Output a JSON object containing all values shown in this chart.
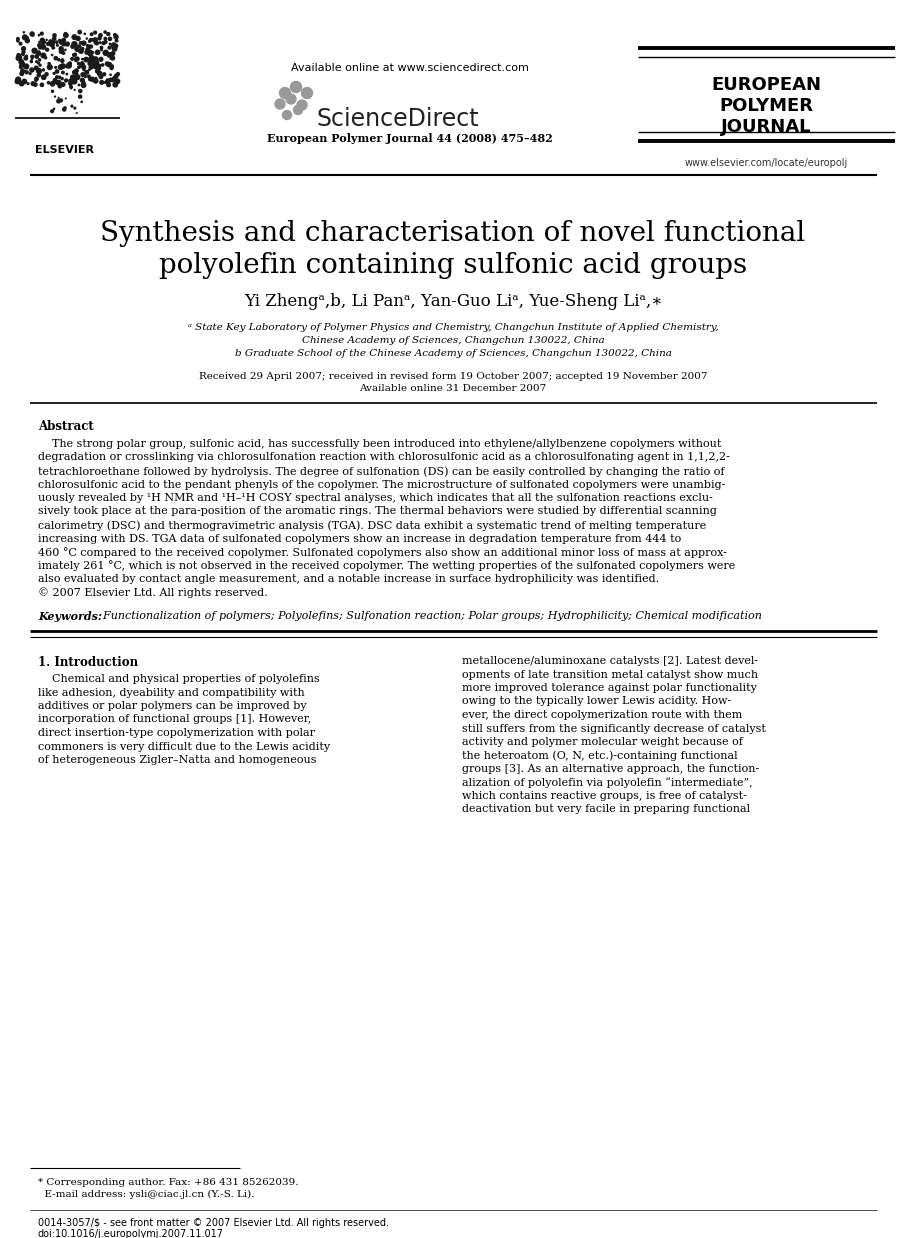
{
  "bg_color": "#ffffff",
  "header": {
    "elsevier_text": "ELSEVIER",
    "available_online": "Available online at www.sciencedirect.com",
    "sciencedirect": "ScienceDirect",
    "journal_line": "European Polymer Journal 44 (2008) 475–482",
    "epj_line1": "EUROPEAN",
    "epj_line2": "POLYMER",
    "epj_line3": "JOURNAL",
    "website": "www.elsevier.com/locate/europolj"
  },
  "title_line1": "Synthesis and characterisation of novel functional",
  "title_line2": "polyolefin containing sulfonic acid groups",
  "authors": "Yi Zhengᵃ,b, Li Panᵃ, Yan-Guo Liᵃ, Yue-Sheng Liᵃ,∗",
  "affil_a1": "ᵃ State Key Laboratory of Polymer Physics and Chemistry, Changchun Institute of Applied Chemistry,",
  "affil_a2": "Chinese Academy of Sciences, Changchun 130022, China",
  "affil_b": "b Graduate School of the Chinese Academy of Sciences, Changchun 130022, China",
  "received1": "Received 29 April 2007; received in revised form 19 October 2007; accepted 19 November 2007",
  "received2": "Available online 31 December 2007",
  "abstract_title": "Abstract",
  "abstract_lines": [
    "    The strong polar group, sulfonic acid, has successfully been introduced into ethylene/allylbenzene copolymers without",
    "degradation or crosslinking via chlorosulfonation reaction with chlorosulfonic acid as a chlorosulfonating agent in 1,1,2,2-",
    "tetrachloroethane followed by hydrolysis. The degree of sulfonation (DS) can be easily controlled by changing the ratio of",
    "chlorosulfonic acid to the pendant phenyls of the copolymer. The microstructure of sulfonated copolymers were unambig-",
    "uously revealed by ¹H NMR and ¹H–¹H COSY spectral analyses, which indicates that all the sulfonation reactions exclu-",
    "sively took place at the para-position of the aromatic rings. The thermal behaviors were studied by differential scanning",
    "calorimetry (DSC) and thermogravimetric analysis (TGA). DSC data exhibit a systematic trend of melting temperature",
    "increasing with DS. TGA data of sulfonated copolymers show an increase in degradation temperature from 444 to",
    "460 °C compared to the received copolymer. Sulfonated copolymers also show an additional minor loss of mass at approx-",
    "imately 261 °C, which is not observed in the received copolymer. The wetting properties of the sulfonated copolymers were",
    "also evaluated by contact angle measurement, and a notable increase in surface hydrophilicity was identified.",
    "© 2007 Elsevier Ltd. All rights reserved."
  ],
  "keywords_bold": "Keywords:",
  "keywords_rest": "  Functionalization of polymers; Polyolefins; Sulfonation reaction; Polar groups; Hydrophilicity; Chemical modification",
  "section1_title": "1. Introduction",
  "intro_left_lines": [
    "    Chemical and physical properties of polyolefins",
    "like adhesion, dyeability and compatibility with",
    "additives or polar polymers can be improved by",
    "incorporation of functional groups [1]. However,",
    "direct insertion-type copolymerization with polar",
    "commoners is very difficult due to the Lewis acidity",
    "of heterogeneous Zigler–Natta and homogeneous"
  ],
  "intro_right_lines": [
    "metallocene/aluminoxane catalysts [2]. Latest devel-",
    "opments of late transition metal catalyst show much",
    "more improved tolerance against polar functionality",
    "owing to the typically lower Lewis acidity. How-",
    "ever, the direct copolymerization route with them",
    "still suffers from the significantly decrease of catalyst",
    "activity and polymer molecular weight because of",
    "the heteroatom (O, N, etc.)-containing functional",
    "groups [3]. As an alternative approach, the function-",
    "alization of polyolefin via polyolefin “intermediate”,",
    "which contains reactive groups, is free of catalyst-",
    "deactivation but very facile in preparing functional"
  ],
  "footnote1": "* Corresponding author. Fax: +86 431 85262039.",
  "footnote2": "  E-mail address: ysli@ciac.jl.cn (Y.-S. Li).",
  "footer1": "0014-3057/$ - see front matter © 2007 Elsevier Ltd. All rights reserved.",
  "footer2": "doi:10.1016/j.europolymj.2007.11.017"
}
